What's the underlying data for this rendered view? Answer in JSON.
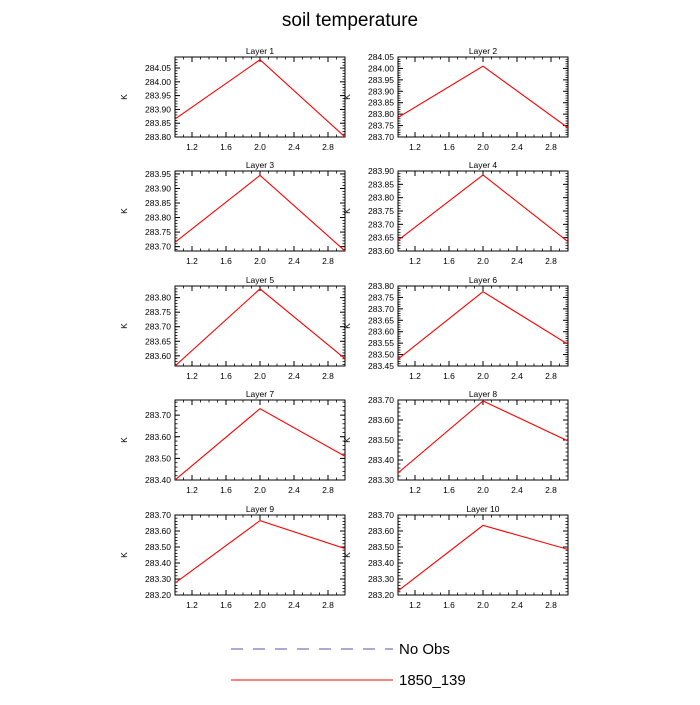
{
  "figure": {
    "title": "soil temperature"
  },
  "legend": {
    "items": [
      {
        "label": "No Obs",
        "color": "#5555aa",
        "style": "dashed"
      },
      {
        "label": "1850_139",
        "color": "#ff0000",
        "style": "solid"
      }
    ]
  },
  "colors": {
    "series_line": "#ff0000",
    "axis": "#000000"
  },
  "chart_data": [
    {
      "type": "line",
      "title": "Layer 1",
      "ylabel": "K",
      "xlabel": "",
      "x": [
        1,
        2,
        3
      ],
      "xlim": [
        1,
        3
      ],
      "xticks": [
        "1.2",
        "1.6",
        "2.0",
        "2.4",
        "2.8"
      ],
      "ylim": [
        283.8,
        284.09
      ],
      "yticks": [
        "283.80",
        "283.85",
        "283.90",
        "283.95",
        "284.00",
        "284.05"
      ],
      "series": [
        {
          "name": "1850_139",
          "values": [
            283.865,
            284.08,
            283.8
          ]
        }
      ]
    },
    {
      "type": "line",
      "title": "Layer 2",
      "ylabel": "K",
      "xlabel": "",
      "x": [
        1,
        2,
        3
      ],
      "xlim": [
        1,
        3
      ],
      "xticks": [
        "1.2",
        "1.6",
        "2.0",
        "2.4",
        "2.8"
      ],
      "ylim": [
        283.7,
        284.05
      ],
      "yticks": [
        "283.70",
        "283.75",
        "283.80",
        "283.85",
        "283.90",
        "283.95",
        "284.00",
        "284.05"
      ],
      "series": [
        {
          "name": "1850_139",
          "values": [
            283.785,
            284.01,
            283.74
          ]
        }
      ]
    },
    {
      "type": "line",
      "title": "Layer 3",
      "ylabel": "K",
      "xlabel": "",
      "x": [
        1,
        2,
        3
      ],
      "xlim": [
        1,
        3
      ],
      "xticks": [
        "1.2",
        "1.6",
        "2.0",
        "2.4",
        "2.8"
      ],
      "ylim": [
        283.685,
        283.96
      ],
      "yticks": [
        "283.70",
        "283.75",
        "283.80",
        "283.85",
        "283.90",
        "283.95"
      ],
      "series": [
        {
          "name": "1850_139",
          "values": [
            283.715,
            283.945,
            283.685
          ]
        }
      ]
    },
    {
      "type": "line",
      "title": "Layer 4",
      "ylabel": "K",
      "xlabel": "",
      "x": [
        1,
        2,
        3
      ],
      "xlim": [
        1,
        3
      ],
      "xticks": [
        "1.2",
        "1.6",
        "2.0",
        "2.4",
        "2.8"
      ],
      "ylim": [
        283.6,
        283.9
      ],
      "yticks": [
        "283.60",
        "283.65",
        "283.70",
        "283.75",
        "283.80",
        "283.85",
        "283.90"
      ],
      "series": [
        {
          "name": "1850_139",
          "values": [
            283.64,
            283.885,
            283.635
          ]
        }
      ]
    },
    {
      "type": "line",
      "title": "Layer 5",
      "ylabel": "K",
      "xlabel": "",
      "x": [
        1,
        2,
        3
      ],
      "xlim": [
        1,
        3
      ],
      "xticks": [
        "1.2",
        "1.6",
        "2.0",
        "2.4",
        "2.8"
      ],
      "ylim": [
        283.565,
        283.84
      ],
      "yticks": [
        "283.60",
        "283.65",
        "283.70",
        "283.75",
        "283.80"
      ],
      "series": [
        {
          "name": "1850_139",
          "values": [
            283.565,
            283.83,
            283.59
          ]
        }
      ]
    },
    {
      "type": "line",
      "title": "Layer 6",
      "ylabel": "K",
      "xlabel": "",
      "x": [
        1,
        2,
        3
      ],
      "xlim": [
        1,
        3
      ],
      "xticks": [
        "1.2",
        "1.6",
        "2.0",
        "2.4",
        "2.8"
      ],
      "ylim": [
        283.45,
        283.8
      ],
      "yticks": [
        "283.45",
        "283.50",
        "283.55",
        "283.60",
        "283.65",
        "283.70",
        "283.75",
        "283.80"
      ],
      "series": [
        {
          "name": "1850_139",
          "values": [
            283.48,
            283.775,
            283.545
          ]
        }
      ]
    },
    {
      "type": "line",
      "title": "Layer 7",
      "ylabel": "K",
      "xlabel": "",
      "x": [
        1,
        2,
        3
      ],
      "xlim": [
        1,
        3
      ],
      "xticks": [
        "1.2",
        "1.6",
        "2.0",
        "2.4",
        "2.8"
      ],
      "ylim": [
        283.4,
        283.77
      ],
      "yticks": [
        "283.40",
        "283.50",
        "283.60",
        "283.70"
      ],
      "series": [
        {
          "name": "1850_139",
          "values": [
            283.4,
            283.73,
            283.51
          ]
        }
      ]
    },
    {
      "type": "line",
      "title": "Layer 8",
      "ylabel": "K",
      "xlabel": "",
      "x": [
        1,
        2,
        3
      ],
      "xlim": [
        1,
        3
      ],
      "xticks": [
        "1.2",
        "1.6",
        "2.0",
        "2.4",
        "2.8"
      ],
      "ylim": [
        283.3,
        283.7
      ],
      "yticks": [
        "283.30",
        "283.40",
        "283.50",
        "283.60",
        "283.70"
      ],
      "series": [
        {
          "name": "1850_139",
          "values": [
            283.335,
            283.695,
            283.495
          ]
        }
      ]
    },
    {
      "type": "line",
      "title": "Layer 9",
      "ylabel": "K",
      "xlabel": "",
      "x": [
        1,
        2,
        3
      ],
      "xlim": [
        1,
        3
      ],
      "xticks": [
        "1.2",
        "1.6",
        "2.0",
        "2.4",
        "2.8"
      ],
      "ylim": [
        283.2,
        283.7
      ],
      "yticks": [
        "283.20",
        "283.30",
        "283.40",
        "283.50",
        "283.60",
        "283.70"
      ],
      "series": [
        {
          "name": "1850_139",
          "values": [
            283.275,
            283.665,
            283.49
          ]
        }
      ]
    },
    {
      "type": "line",
      "title": "Layer 10",
      "ylabel": "K",
      "xlabel": "",
      "x": [
        1,
        2,
        3
      ],
      "xlim": [
        1,
        3
      ],
      "xticks": [
        "1.2",
        "1.6",
        "2.0",
        "2.4",
        "2.8"
      ],
      "ylim": [
        283.2,
        283.7
      ],
      "yticks": [
        "283.20",
        "283.30",
        "283.40",
        "283.50",
        "283.60",
        "283.70"
      ],
      "series": [
        {
          "name": "1850_139",
          "values": [
            283.225,
            283.635,
            283.485
          ]
        }
      ]
    }
  ]
}
